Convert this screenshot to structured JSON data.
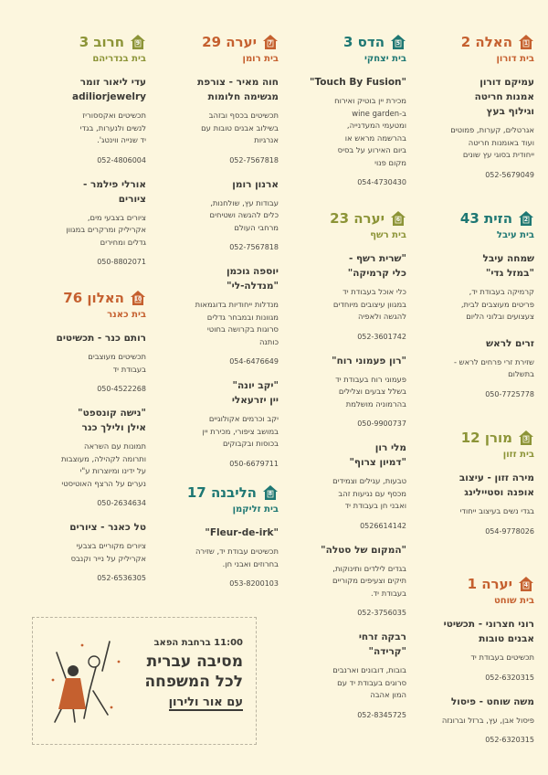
{
  "colors": {
    "orange": "#c5602f",
    "teal": "#1e7773",
    "olive": "#8c9437",
    "text": "#3b3a36",
    "background": "#fcf6de"
  },
  "houses": [
    {
      "number": "1",
      "street": "האלה 2",
      "family": "בית דורון",
      "color": "orange",
      "entries": [
        {
          "name": "עמיקם דורון\nאמנות חריטה\nוגילוף בעץ",
          "desc": "אגרטלים, קערות, פמוטים\nועוד באומנות חריטה\nייחודית בסוגי עץ שונים",
          "phone": "052-5679049"
        }
      ]
    },
    {
      "number": "2",
      "street": "הזית 43",
      "family": "בית עיבל",
      "color": "teal",
      "entries": [
        {
          "name": "שמחה עיבל\n\"במזל גדי\"",
          "desc": "קרמיקה בעבודת יד,\nפריטים מעוצבים לבית,\nצעצועים ובלוני הליום",
          "phone": ""
        },
        {
          "name": "זרים לראש",
          "desc": "שזירת זרי פרחים לראש -\nבתשלום",
          "phone": "050-7725778"
        }
      ]
    },
    {
      "number": "3",
      "street": "מורן 12",
      "family": "בית זזון",
      "color": "olive",
      "entries": [
        {
          "name": "מירה זזון - עיצוב\nאופנה וסטיילינג",
          "desc": "בגדי נשים בעיצוב ייחודי",
          "phone": "054-9778026"
        }
      ]
    },
    {
      "number": "4",
      "street": "יערה 1",
      "family": "בית שוחט",
      "color": "orange",
      "entries": [
        {
          "name": "רוני חצרוני - תכשיטי\nאבנים טובות",
          "desc": "תכשיטים בעבודת יד",
          "phone": "052-6320315"
        },
        {
          "name": "משה שוחט - פיסול",
          "desc": "פיסול אבן, עץ, ברזל וברונזה",
          "phone": "052-6320315"
        }
      ]
    },
    {
      "number": "5",
      "street": "הדס 3",
      "family": "בית יצחקי",
      "color": "teal",
      "entries": [
        {
          "name": "\"Touch By Fusion\"",
          "desc": "מכירת יין בוטיק ואירוח\nב-wine garden\nומטעמי המעדנייה,\nבהרשמה מראש או\nביום האירוע על בסיס\nמקום פנוי",
          "phone": "054-4730430"
        }
      ]
    },
    {
      "number": "6",
      "street": "יערה 23",
      "family": "בית רשף",
      "color": "olive",
      "entries": [
        {
          "name": "\"שרית רשף -\nכלי קרמיקה\"",
          "desc": "כלי אוכל בעבודת יד\nבמגוון עיצובים מיוחדים\nלהגשה ולאפיה",
          "phone": "052-3601742"
        },
        {
          "name": "\"רון פעמוני רוח\"",
          "desc": "פעמוני רוח בעבודת יד\nבשלל צבעים וצלילים\nבהרמוניה מושלמת",
          "phone": "050-9900737"
        },
        {
          "name": "מלי רון\n\"דמיון צרוף\"",
          "desc": "טבעות, עגילים וצמידים\nמכסף עם נגיעות זהב\nואבני חן בעבודת יד",
          "phone": "0526614142"
        },
        {
          "name": "\"המקום של סטלה\"",
          "desc": "בגדים לילדים ותינוקות,\nתיקים וצעיפים מקוריים\nבעבודת יד.",
          "phone": "052-3756035"
        },
        {
          "name": "רבקה זרחי\n\"קרידה\"",
          "desc": "בובות, דובונים וארנבים\nסרוגים בעבודת יד עם\nהמון אהבה",
          "phone": "052-8345725"
        }
      ]
    },
    {
      "number": "7",
      "street": "יערה 29",
      "family": "בית רומן",
      "color": "orange",
      "entries": [
        {
          "name": "חוה מאיר - צורפת\nמגשימה חלומות",
          "desc": "תכשיטים בכסף ובזהב\nבשילוב אבנים טובות עם\nאנרגיות",
          "phone": "052-7567818"
        },
        {
          "name": "ארנון רומן",
          "desc": "עבודות עץ, שולחנות,\nכלים להגשה ושטיחים\nמרחבי העולם",
          "phone": "052-7567818"
        },
        {
          "name": "יוספה גוכמן\n\"מנדלה-לי\"",
          "desc": "מנדלות ייחודיות בדוגמאות\nמגוונות ובמבחר גדלים\nסרוגות בקרושה בחוטי\nכותנה",
          "phone": "054-6476649"
        },
        {
          "name": "\"יקב יונה\"\nיין יזרעאלי",
          "desc": "יקב וכרמים אקולוגיים\nבמושב ציפורי, מכירת יין\nבכוסות ובקבוקים",
          "phone": "050-6679711"
        }
      ]
    },
    {
      "number": "8",
      "street": "הליבנה 17",
      "family": "בית זליקמן",
      "color": "teal",
      "entries": [
        {
          "name": "\"Fleur-de-irk\"",
          "desc": "תכשיטים עבודת יד, שזירה\nבחרוזים ואבני חן.",
          "phone": "053-8200103"
        }
      ]
    },
    {
      "number": "9",
      "street": "חרוב 3",
      "family": "בית בנדריהם",
      "color": "olive",
      "entries": [
        {
          "name": "עדי ליאור זומר\nadiliorjewelry",
          "desc": "תכשיטים ואקססוריז\nלנשים ולנערות, בגדי\nיד שנייה ווינטג'.",
          "phone": "052-4806004"
        },
        {
          "name": "אורלי פילמר -\nציורים",
          "desc": "ציורים בצבעי מים,\nאקריליק ומרקרים במגוון\nגדלים ומחירים",
          "phone": "050-8802071"
        }
      ]
    },
    {
      "number": "10",
      "street": "האלון 76",
      "family": "בית כאנר",
      "color": "orange",
      "entries": [
        {
          "name": "רותם כנר - תכשיטים",
          "desc": "תכשיטים מעוצבים\nבעבודת יד",
          "phone": "050-4522268"
        },
        {
          "name": "\"נישה קונספט\"\nאילן ולילך כנר",
          "desc": "תמונות עם השראה\nותרומה לקהילה, מעוצבות\nעל ידינו ומיוצרות ע\"י\nנערים על הרצף האוטיסטי",
          "phone": "050-2634634"
        },
        {
          "name": "טל כאנר - ציורים",
          "desc": "ציורים מקוריים בצבעי\nאקריליק על נייר וקנבס",
          "phone": "052-6536305"
        }
      ]
    }
  ],
  "event": {
    "time_place": "11:00 ברחבת הפאב",
    "title": "מסיבה עברית\nלכל המשפחה",
    "hosts": "עם אור ולירון"
  }
}
